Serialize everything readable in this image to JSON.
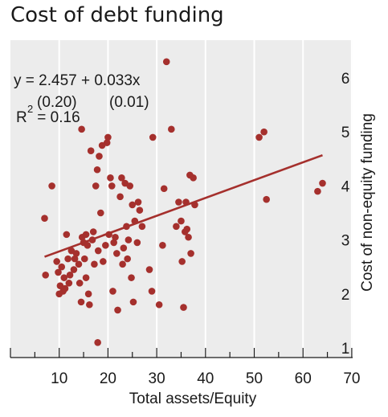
{
  "chart_data": {
    "type": "scatter",
    "title": "Cost of debt funding",
    "xlabel": "Total assets/Equity",
    "ylabel": "Cost of non-equity funding",
    "xlim": [
      0,
      70
    ],
    "ylim": [
      1,
      6.5
    ],
    "x_ticks": [
      10,
      20,
      30,
      40,
      50,
      60,
      70
    ],
    "y_ticks": [
      1,
      2,
      3,
      4,
      5,
      6
    ],
    "y_axis_position": "right",
    "grid": {
      "vertical": true,
      "horizontal": false
    },
    "background_color": "#ececec",
    "marker_color": "#a5302d",
    "line_color": "#a5302d",
    "annotations": {
      "equation": "y = 2.457 + 0.033x",
      "se_intercept": "(0.20)",
      "se_slope": "(0.01)",
      "r2_label": "R",
      "r2_exp": "2",
      "r2_value": " = 0.16"
    },
    "regression": {
      "intercept": 2.457,
      "slope": 0.033,
      "x_range": [
        7,
        64
      ]
    },
    "points": [
      [
        7,
        3.4
      ],
      [
        7.2,
        2.35
      ],
      [
        8.5,
        4.0
      ],
      [
        9.5,
        2.6
      ],
      [
        9.8,
        2.4
      ],
      [
        10,
        2.0
      ],
      [
        10.2,
        2.15
      ],
      [
        10.5,
        2.5
      ],
      [
        10.8,
        2.05
      ],
      [
        11,
        2.3
      ],
      [
        11.2,
        2.1
      ],
      [
        11.5,
        3.1
      ],
      [
        11.8,
        2.65
      ],
      [
        12,
        2.2
      ],
      [
        12.2,
        2.35
      ],
      [
        12.5,
        2.8
      ],
      [
        13,
        2.45
      ],
      [
        13.2,
        2.65
      ],
      [
        13.5,
        2.75
      ],
      [
        14,
        2.55
      ],
      [
        14.2,
        2.2
      ],
      [
        14.5,
        1.85
      ],
      [
        14.6,
        5.05
      ],
      [
        14.7,
        3.05
      ],
      [
        15,
        2.95
      ],
      [
        15.2,
        2.65
      ],
      [
        15.5,
        2.3
      ],
      [
        15.5,
        3.1
      ],
      [
        15.8,
        2.9
      ],
      [
        16,
        2.0
      ],
      [
        16.2,
        1.8
      ],
      [
        16.5,
        4.65
      ],
      [
        16.8,
        3.0
      ],
      [
        17,
        3.15
      ],
      [
        17.2,
        2.55
      ],
      [
        17.5,
        4.0
      ],
      [
        17.8,
        4.3
      ],
      [
        17.9,
        1.1
      ],
      [
        18,
        2.8
      ],
      [
        18.2,
        4.55
      ],
      [
        18.5,
        3.5
      ],
      [
        18.8,
        4.75
      ],
      [
        19,
        2.6
      ],
      [
        19.5,
        2.9
      ],
      [
        19.8,
        4.8
      ],
      [
        20,
        4.9
      ],
      [
        20.2,
        3.1
      ],
      [
        20.5,
        4.15
      ],
      [
        20.8,
        4.0
      ],
      [
        21,
        2.05
      ],
      [
        21.2,
        2.95
      ],
      [
        21.5,
        3.05
      ],
      [
        21.8,
        2.75
      ],
      [
        22,
        1.7
      ],
      [
        22.5,
        3.8
      ],
      [
        22.8,
        4.15
      ],
      [
        23,
        2.55
      ],
      [
        23.2,
        2.85
      ],
      [
        23.5,
        4.05
      ],
      [
        23.8,
        3.25
      ],
      [
        24,
        2.65
      ],
      [
        24.2,
        3.0
      ],
      [
        24.5,
        4.0
      ],
      [
        24.8,
        2.3
      ],
      [
        25,
        3.65
      ],
      [
        25.2,
        1.85
      ],
      [
        25.5,
        3.35
      ],
      [
        26,
        2.95
      ],
      [
        26.2,
        3.7
      ],
      [
        26.5,
        3.55
      ],
      [
        27,
        3.25
      ],
      [
        28.5,
        2.45
      ],
      [
        29,
        2.05
      ],
      [
        29.2,
        4.9
      ],
      [
        30.5,
        1.8
      ],
      [
        31.2,
        2.9
      ],
      [
        31.5,
        3.95
      ],
      [
        32,
        6.3
      ],
      [
        33,
        5.05
      ],
      [
        34,
        3.25
      ],
      [
        34.5,
        3.7
      ],
      [
        35,
        3.35
      ],
      [
        35.2,
        2.6
      ],
      [
        35.5,
        1.75
      ],
      [
        35.8,
        3.15
      ],
      [
        36,
        3.7
      ],
      [
        36.2,
        3.2
      ],
      [
        36.5,
        3.05
      ],
      [
        36.8,
        4.2
      ],
      [
        37,
        2.75
      ],
      [
        37.5,
        4.15
      ],
      [
        37.8,
        3.65
      ],
      [
        51,
        4.9
      ],
      [
        52,
        5.0
      ],
      [
        52.5,
        3.75
      ],
      [
        63,
        3.9
      ],
      [
        64,
        4.05
      ]
    ]
  }
}
